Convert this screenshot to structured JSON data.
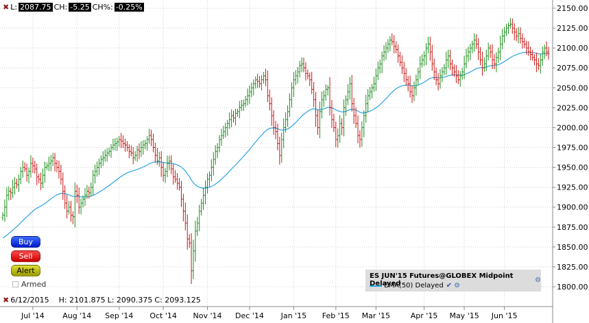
{
  "header": {
    "last_label": "L:",
    "last_value": "2087.75",
    "change_label": "CH:",
    "change_value": "-5.25",
    "change_pct_label": "CH%:",
    "change_pct_value": "-0.25%"
  },
  "footer": {
    "date": "6/12/2015",
    "high": "H: 2101.875",
    "low": "L: 2090.375",
    "close": "C: 2093.125"
  },
  "buttons": {
    "buy": "Buy",
    "sell": "Sell",
    "alert": "Alert",
    "armed": "Armed"
  },
  "legend": {
    "instrument": "ES JUN'15 Futures@GLOBEX Midpoint Delayed",
    "ema": "EMA(50) Delayed"
  },
  "colors": {
    "up": "#1a8c1a",
    "down": "#c81414",
    "ema": "#29a3e0",
    "grid": "#d0d0d0"
  },
  "chart_data": {
    "type": "ohlc",
    "ylim": [
      1790,
      2160
    ],
    "yticks": [
      1800,
      1825,
      1850,
      1875,
      1900,
      1925,
      1950,
      1975,
      2000,
      2025,
      2050,
      2075,
      2100,
      2125,
      2150
    ],
    "ytick_labels": [
      "1800.00",
      "1825.00",
      "1850.00",
      "1875.00",
      "1900.00",
      "1925.00",
      "1950.00",
      "1975.00",
      "2000.00",
      "2025.00",
      "2050.00",
      "2075.00",
      "2100.00",
      "2125.00",
      "2150.00"
    ],
    "x_labels": [
      "Jul '14",
      "Aug '14",
      "Sep '14",
      "Oct '14",
      "Nov '14",
      "Dec '14",
      "Jan '15",
      "Feb '15",
      "Mar '15",
      "Apr '15",
      "May '15",
      "Jun '15"
    ],
    "x_label_index": [
      15,
      37,
      58,
      80,
      102,
      123,
      145,
      166,
      186,
      210,
      230,
      250
    ],
    "close": [
      1890,
      1900,
      1915,
      1920,
      1918,
      1925,
      1930,
      1928,
      1935,
      1945,
      1950,
      1948,
      1940,
      1945,
      1955,
      1952,
      1948,
      1938,
      1935,
      1930,
      1940,
      1950,
      1952,
      1955,
      1958,
      1962,
      1955,
      1950,
      1945,
      1935,
      1920,
      1905,
      1895,
      1900,
      1890,
      1888,
      1920,
      1915,
      1900,
      1905,
      1910,
      1915,
      1920,
      1918,
      1925,
      1940,
      1945,
      1950,
      1955,
      1960,
      1962,
      1965,
      1968,
      1970,
      1975,
      1978,
      1980,
      1982,
      1985,
      1983,
      1980,
      1978,
      1975,
      1970,
      1968,
      1962,
      1965,
      1972,
      1970,
      1975,
      1978,
      1980,
      1985,
      1990,
      1985,
      1975,
      1965,
      1958,
      1962,
      1950,
      1940,
      1945,
      1955,
      1958,
      1948,
      1938,
      1935,
      1930,
      1925,
      1910,
      1895,
      1880,
      1860,
      1855,
      1820,
      1845,
      1870,
      1880,
      1895,
      1905,
      1915,
      1925,
      1935,
      1940,
      1950,
      1960,
      1970,
      1975,
      1985,
      1990,
      1995,
      2000,
      2005,
      2010,
      2015,
      2012,
      2018,
      2020,
      2025,
      2028,
      2030,
      2035,
      2040,
      2045,
      2050,
      2055,
      2060,
      2058,
      2055,
      2060,
      2065,
      2060,
      2040,
      2030,
      2015,
      2000,
      1995,
      1980,
      1965,
      1985,
      2000,
      2010,
      2020,
      2035,
      2050,
      2060,
      2065,
      2070,
      2078,
      2080,
      2075,
      2068,
      2065,
      2060,
      2048,
      2035,
      2015,
      2000,
      2020,
      2035,
      2040,
      2048,
      2050,
      2025,
      2010,
      2000,
      1985,
      1990,
      2005,
      2000,
      2025,
      2035,
      2045,
      2055,
      2030,
      2015,
      2005,
      1990,
      1985,
      2000,
      2015,
      2030,
      2040,
      2045,
      2050,
      2055,
      2065,
      2075,
      2080,
      2090,
      2095,
      2100,
      2105,
      2110,
      2108,
      2102,
      2098,
      2090,
      2082,
      2075,
      2068,
      2060,
      2055,
      2045,
      2040,
      2050,
      2060,
      2070,
      2080,
      2085,
      2090,
      2100,
      2105,
      2095,
      2080,
      2070,
      2060,
      2055,
      2065,
      2070,
      2075,
      2085,
      2090,
      2080,
      2075,
      2070,
      2065,
      2060,
      2065,
      2070,
      2080,
      2090,
      2095,
      2100,
      2105,
      2110,
      2105,
      2095,
      2085,
      2075,
      2080,
      2090,
      2100,
      2095,
      2085,
      2080,
      2088,
      2095,
      2105,
      2115,
      2120,
      2125,
      2128,
      2130,
      2125,
      2120,
      2115,
      2118,
      2112,
      2108,
      2105,
      2100,
      2095,
      2092,
      2088,
      2085,
      2080,
      2078,
      2085,
      2095,
      2100,
      2095,
      2093
    ]
  }
}
